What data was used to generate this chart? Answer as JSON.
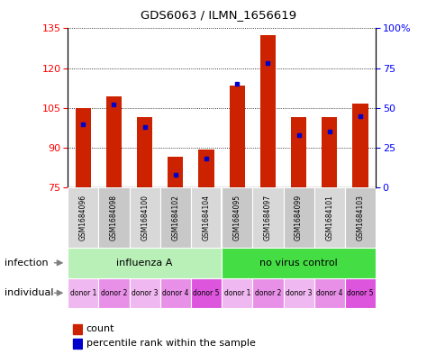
{
  "title": "GDS6063 / ILMN_1656619",
  "samples": [
    "GSM1684096",
    "GSM1684098",
    "GSM1684100",
    "GSM1684102",
    "GSM1684104",
    "GSM1684095",
    "GSM1684097",
    "GSM1684099",
    "GSM1684101",
    "GSM1684103"
  ],
  "count_values": [
    105.0,
    109.5,
    101.5,
    86.5,
    89.5,
    113.5,
    132.5,
    101.5,
    101.5,
    106.5
  ],
  "percentile_values": [
    40,
    52,
    38,
    8,
    18,
    65,
    78,
    33,
    35,
    45
  ],
  "ylim_left": [
    75,
    135
  ],
  "ylim_right": [
    0,
    100
  ],
  "yticks_left": [
    75,
    90,
    105,
    120,
    135
  ],
  "yticks_right": [
    0,
    25,
    50,
    75,
    100
  ],
  "infection_groups": [
    {
      "label": "influenza A",
      "start": 0,
      "end": 5,
      "color": "#b8f0b8"
    },
    {
      "label": "no virus control",
      "start": 5,
      "end": 10,
      "color": "#44dd44"
    }
  ],
  "individual_labels": [
    "donor 1",
    "donor 2",
    "donor 3",
    "donor 4",
    "donor 5",
    "donor 1",
    "donor 2",
    "donor 3",
    "donor 4",
    "donor 5"
  ],
  "individual_colors": [
    "#f0b8f0",
    "#e890e8",
    "#f0b8f0",
    "#e890e8",
    "#dd55dd",
    "#f0b8f0",
    "#e890e8",
    "#f0b8f0",
    "#e890e8",
    "#dd55dd"
  ],
  "sample_colors": [
    "#d8d8d8",
    "#c8c8c8",
    "#d8d8d8",
    "#c8c8c8",
    "#d8d8d8",
    "#c8c8c8",
    "#d8d8d8",
    "#c8c8c8",
    "#d8d8d8",
    "#c8c8c8"
  ],
  "bar_color": "#cc2200",
  "percentile_color": "#0000cc",
  "grid_color": "#000000",
  "legend_count_label": "count",
  "legend_percentile_label": "percentile rank within the sample",
  "infection_label": "infection",
  "individual_label": "individual",
  "bar_width": 0.5,
  "base_value": 75
}
